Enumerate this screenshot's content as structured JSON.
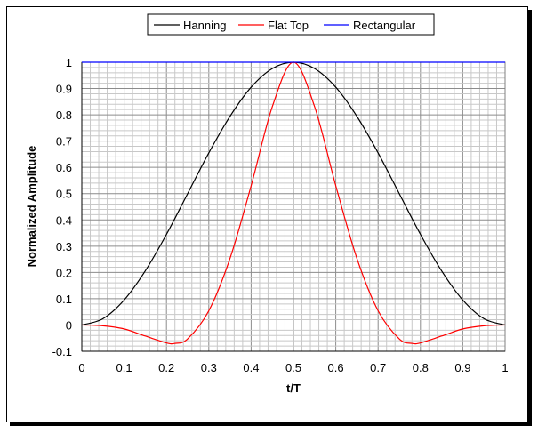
{
  "chart_data": {
    "type": "line",
    "title": "",
    "xlabel": "t/T",
    "ylabel": "Normalized Amplitude",
    "xlim": [
      0,
      1
    ],
    "ylim": [
      -0.1,
      1
    ],
    "x_ticks": [
      "0",
      "0.1",
      "0.2",
      "0.3",
      "0.4",
      "0.5",
      "0.6",
      "0.7",
      "0.8",
      "0.9",
      "1"
    ],
    "y_ticks": [
      "-0.1",
      "0",
      "0.1",
      "0.2",
      "0.3",
      "0.4",
      "0.5",
      "0.6",
      "0.7",
      "0.8",
      "0.9",
      "1"
    ],
    "grid": true,
    "legend_position": "top",
    "series": [
      {
        "name": "Hanning",
        "color": "#000000",
        "x": [
          0,
          0.05,
          0.1,
          0.15,
          0.2,
          0.25,
          0.3,
          0.35,
          0.4,
          0.45,
          0.5,
          0.55,
          0.6,
          0.65,
          0.7,
          0.75,
          0.8,
          0.85,
          0.9,
          0.95,
          1
        ],
        "values": [
          0,
          0.024,
          0.095,
          0.206,
          0.345,
          0.5,
          0.655,
          0.794,
          0.905,
          0.976,
          1,
          0.976,
          0.905,
          0.794,
          0.655,
          0.5,
          0.345,
          0.206,
          0.095,
          0.024,
          0
        ]
      },
      {
        "name": "Flat Top",
        "color": "#ff0000",
        "x": [
          0,
          0.05,
          0.1,
          0.15,
          0.2,
          0.22,
          0.25,
          0.3,
          0.35,
          0.4,
          0.45,
          0.5,
          0.55,
          0.6,
          0.65,
          0.7,
          0.75,
          0.78,
          0.8,
          0.85,
          0.9,
          0.95,
          1
        ],
        "values": [
          0,
          -0.003,
          -0.015,
          -0.042,
          -0.068,
          -0.07,
          -0.053,
          0.054,
          0.253,
          0.53,
          0.831,
          1,
          0.831,
          0.53,
          0.253,
          0.054,
          -0.053,
          -0.07,
          -0.068,
          -0.042,
          -0.015,
          -0.003,
          0
        ]
      },
      {
        "name": "Rectangular",
        "color": "#0000ff",
        "x": [
          0,
          1
        ],
        "values": [
          1,
          1
        ]
      }
    ]
  }
}
